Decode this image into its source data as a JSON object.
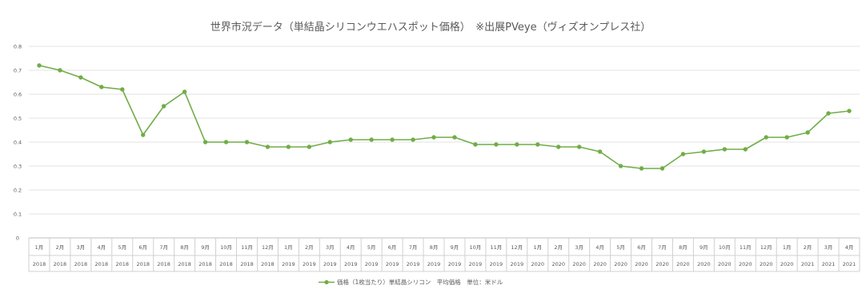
{
  "chart_data": {
    "type": "line",
    "title": "世界市況データ（単結晶シリコンウエハスポット価格）　※出展PVeye（ヴィズオンプレス社）",
    "ylim": [
      0,
      0.8
    ],
    "y_ticks": [
      "0",
      "0.1",
      "0.2",
      "0.3",
      "0.4",
      "0.5",
      "0.6",
      "0.7",
      "0.8"
    ],
    "grid": true,
    "legend_position": "bottom",
    "color": "#70AD47",
    "categories": [
      [
        "1月",
        "2018"
      ],
      [
        "2月",
        "2018"
      ],
      [
        "3月",
        "2018"
      ],
      [
        "4月",
        "2018"
      ],
      [
        "5月",
        "2018"
      ],
      [
        "6月",
        "2018"
      ],
      [
        "7月",
        "2018"
      ],
      [
        "8月",
        "2018"
      ],
      [
        "9月",
        "2018"
      ],
      [
        "10月",
        "2018"
      ],
      [
        "11月",
        "2018"
      ],
      [
        "12月",
        "2018"
      ],
      [
        "1月",
        "2019"
      ],
      [
        "2月",
        "2019"
      ],
      [
        "3月",
        "2019"
      ],
      [
        "4月",
        "2019"
      ],
      [
        "5月",
        "2019"
      ],
      [
        "6月",
        "2019"
      ],
      [
        "7月",
        "2019"
      ],
      [
        "8月",
        "2019"
      ],
      [
        "9月",
        "2019"
      ],
      [
        "10月",
        "2019"
      ],
      [
        "11月",
        "2019"
      ],
      [
        "12月",
        "2019"
      ],
      [
        "1月",
        "2020"
      ],
      [
        "2月",
        "2020"
      ],
      [
        "3月",
        "2020"
      ],
      [
        "4月",
        "2020"
      ],
      [
        "5月",
        "2020"
      ],
      [
        "6月",
        "2020"
      ],
      [
        "7月",
        "2020"
      ],
      [
        "8月",
        "2020"
      ],
      [
        "9月",
        "2020"
      ],
      [
        "10月",
        "2020"
      ],
      [
        "11月",
        "2020"
      ],
      [
        "12月",
        "2020"
      ],
      [
        "1月",
        "2020"
      ],
      [
        "2月",
        "2021"
      ],
      [
        "3月",
        "2021"
      ],
      [
        "4月",
        "2021"
      ]
    ],
    "series": [
      {
        "name": "価格（1枚当たり）単結晶シリコン　平均価格　単位：米ドル",
        "values": [
          0.72,
          0.7,
          0.67,
          0.63,
          0.62,
          0.43,
          0.55,
          0.61,
          0.4,
          0.4,
          0.4,
          0.38,
          0.38,
          0.38,
          0.4,
          0.41,
          0.41,
          0.41,
          0.41,
          0.42,
          0.42,
          0.39,
          0.39,
          0.39,
          0.39,
          0.38,
          0.38,
          0.36,
          0.3,
          0.29,
          0.29,
          0.35,
          0.36,
          0.37,
          0.37,
          0.42,
          0.42,
          0.44,
          0.52,
          0.53
        ]
      }
    ]
  }
}
